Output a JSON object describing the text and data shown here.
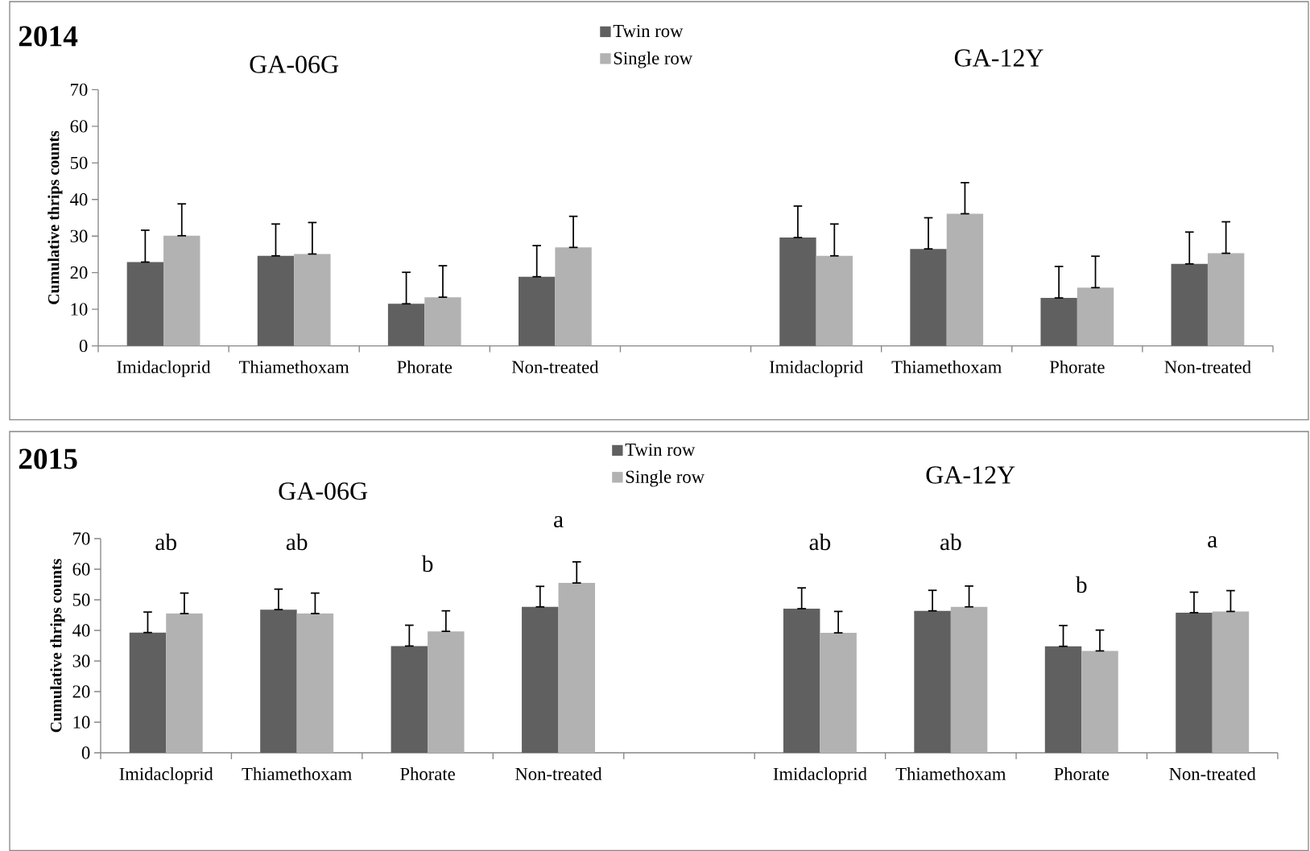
{
  "chart_data": [
    {
      "type": "bar",
      "title": "2014",
      "ylabel": "Cumulative thrips counts",
      "ylim": [
        0,
        70
      ],
      "yticks": [
        0,
        10,
        20,
        30,
        40,
        50,
        60,
        70
      ],
      "legend": "top",
      "categories": [
        "Imidacloprid",
        "Thiamethoxam",
        "Phorate",
        "Non-treated",
        null,
        "Imidacloprid",
        "Thiamethoxam",
        "Phorate",
        "Non-treated"
      ],
      "annotations": [
        "GA-06G",
        "GA-12Y"
      ],
      "series": [
        {
          "name": "Twin row",
          "color": "#606060",
          "values": [
            22.9,
            24.6,
            11.5,
            18.9,
            null,
            29.6,
            26.5,
            13.1,
            22.4
          ],
          "errors": [
            [
              22.9,
              31.6
            ],
            [
              24.6,
              33.3
            ],
            [
              11.5,
              20.1
            ],
            [
              18.9,
              27.4
            ],
            null,
            [
              29.6,
              38.2
            ],
            [
              26.5,
              35.0
            ],
            [
              13.1,
              21.7
            ],
            [
              22.4,
              31.1
            ]
          ]
        },
        {
          "name": "Single row",
          "color": "#b2b2b2",
          "values": [
            30.1,
            25.1,
            13.3,
            26.9,
            null,
            24.6,
            36.1,
            15.9,
            25.3
          ],
          "errors": [
            [
              30.1,
              38.8
            ],
            [
              25.1,
              33.7
            ],
            [
              13.3,
              21.9
            ],
            [
              26.9,
              35.4
            ],
            null,
            [
              24.6,
              33.3
            ],
            [
              36.1,
              44.6
            ],
            [
              15.9,
              24.5
            ],
            [
              25.3,
              33.9
            ]
          ]
        }
      ]
    },
    {
      "type": "bar",
      "title": "2015",
      "ylabel": "Cumulative thrips counts",
      "ylim": [
        0,
        70
      ],
      "yticks": [
        0,
        10,
        20,
        30,
        40,
        50,
        60,
        70
      ],
      "legend": "top",
      "categories": [
        "Imidacloprid",
        "Thiamethoxam",
        "Phorate",
        "Non-treated",
        null,
        "Imidacloprid",
        "Thiamethoxam",
        "Phorate",
        "Non-treated"
      ],
      "annotations": [
        "GA-06G",
        "GA-12Y",
        "ab",
        "ab",
        "b",
        "a",
        "ab",
        "ab",
        "b",
        "a"
      ],
      "series": [
        {
          "name": "Twin row",
          "color": "#606060",
          "values": [
            39.3,
            46.8,
            34.9,
            47.7,
            null,
            47.1,
            46.4,
            34.8,
            45.8
          ],
          "errors": [
            [
              39.3,
              46.0
            ],
            [
              46.8,
              53.5
            ],
            [
              34.9,
              41.7
            ],
            [
              47.7,
              54.4
            ],
            null,
            [
              47.1,
              53.9
            ],
            [
              46.4,
              53.1
            ],
            [
              34.8,
              41.6
            ],
            [
              45.8,
              52.5
            ]
          ]
        },
        {
          "name": "Single row",
          "color": "#b2b2b2",
          "values": [
            45.5,
            45.5,
            39.7,
            55.5,
            null,
            39.2,
            47.7,
            33.3,
            46.2
          ],
          "errors": [
            [
              45.5,
              52.2
            ],
            [
              45.5,
              52.2
            ],
            [
              39.7,
              46.4
            ],
            [
              55.5,
              62.4
            ],
            null,
            [
              39.2,
              46.2
            ],
            [
              47.7,
              54.5
            ],
            [
              33.3,
              40.1
            ],
            [
              46.2,
              53.0
            ]
          ]
        }
      ]
    }
  ]
}
